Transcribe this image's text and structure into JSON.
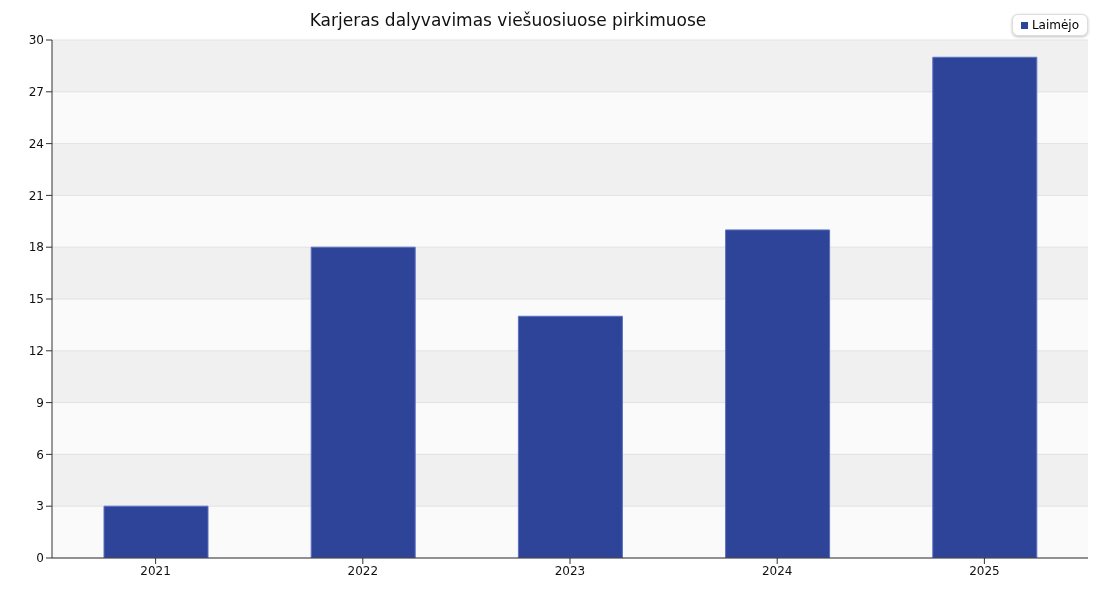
{
  "chart_data": {
    "type": "bar",
    "title": "Karjeras dalyvavimas viešuosiuose pirkimuose",
    "categories": [
      "2021",
      "2022",
      "2023",
      "2024",
      "2025"
    ],
    "series": [
      {
        "name": "Laimėjo",
        "color": "#2e4499",
        "values": [
          3,
          18,
          14,
          19,
          29
        ]
      }
    ],
    "ylim": [
      0,
      30
    ],
    "yticks": [
      0,
      3,
      6,
      9,
      12,
      15,
      18,
      21,
      24,
      27,
      30
    ],
    "grid": "y",
    "legend": "top right"
  }
}
